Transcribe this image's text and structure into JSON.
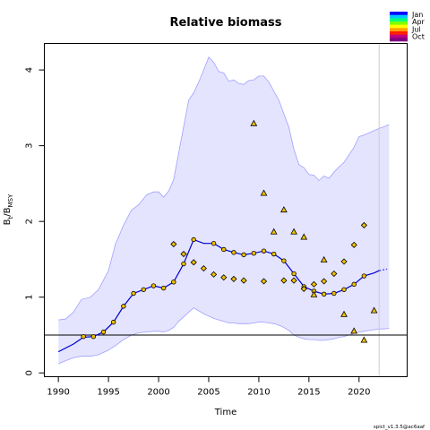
{
  "chart_data": {
    "type": "line",
    "title": "Relative biomass",
    "xlabel": "Time",
    "ylabel": "Bt/BMSY",
    "ylabel_main": "B",
    "ylabel_sub1": "t",
    "ylabel_sep": "/B",
    "ylabel_sub2": "MSY",
    "footnote": "spict_v1.3.5@ac6aaf",
    "xlim": [
      1988.6,
      2024.8
    ],
    "ylim": [
      -0.05,
      4.35
    ],
    "x_ticks": [
      1990,
      1995,
      2000,
      2005,
      2010,
      2015,
      2020
    ],
    "y_ticks": [
      0,
      1,
      2,
      3,
      4
    ],
    "reference_line_y": 0.5,
    "forecast_start_x": 2022,
    "grid": false,
    "legend": {
      "position": "top-right",
      "labels": [
        "Jan",
        "Apr",
        "Jul",
        "Oct"
      ],
      "colors": [
        "#0000ff",
        "#00c8ff",
        "#00ff80",
        "#80ff00",
        "#ffff00",
        "#ffa000",
        "#ff2000",
        "#c00080",
        "#800080"
      ]
    },
    "colors": {
      "ci_fill": "#e4e4ff",
      "ci_line": "#a0a0ff",
      "estimate_line": "#0000cc",
      "forecast_line": "#2828ff",
      "marker_fill": "#f0c000",
      "reference_line": "#000000",
      "forecast_vline": "#cccccc"
    },
    "ci_upper": {
      "x": [
        1990,
        1990.7,
        1991.5,
        1992.3,
        1993.2,
        1994,
        1995,
        1995.7,
        1996.5,
        1997.3,
        1998,
        1998.8,
        1999.5,
        2000,
        2000.5,
        2001,
        2001.5,
        2002,
        2003,
        2003.5,
        2004,
        2004.5,
        2005,
        2005.5,
        2006,
        2006.5,
        2007,
        2007.5,
        2008,
        2008.5,
        2009,
        2009.5,
        2010,
        2010.5,
        2011,
        2011.5,
        2012,
        2012.5,
        2013,
        2013.5,
        2014,
        2014.5,
        2015,
        2015.5,
        2016,
        2016.5,
        2017,
        2017.5,
        2018,
        2018.5,
        2019,
        2019.5,
        2020,
        2020.5,
        2021,
        2021.5,
        2022,
        2022.5,
        2023
      ],
      "values": [
        0.7,
        0.71,
        0.8,
        0.97,
        1.0,
        1.1,
        1.35,
        1.7,
        1.95,
        2.15,
        2.22,
        2.35,
        2.39,
        2.39,
        2.32,
        2.4,
        2.55,
        2.9,
        3.6,
        3.7,
        3.84,
        4.0,
        4.17,
        4.1,
        3.98,
        3.96,
        3.85,
        3.87,
        3.82,
        3.81,
        3.86,
        3.87,
        3.92,
        3.92,
        3.84,
        3.72,
        3.6,
        3.42,
        3.24,
        2.95,
        2.75,
        2.71,
        2.62,
        2.61,
        2.54,
        2.6,
        2.57,
        2.65,
        2.72,
        2.78,
        2.88,
        2.98,
        3.12,
        3.14,
        3.17,
        3.2,
        3.23,
        3.25,
        3.28
      ]
    },
    "ci_lower": {
      "x": [
        1990,
        1990.7,
        1991.5,
        1992.3,
        1993.2,
        1994,
        1995,
        1995.7,
        1996.5,
        1997.3,
        1998,
        1998.8,
        1999.5,
        2000,
        2000.5,
        2001,
        2001.5,
        2002,
        2003,
        2003.5,
        2004,
        2004.5,
        2005,
        2005.5,
        2006,
        2006.5,
        2007,
        2007.5,
        2008,
        2008.5,
        2009,
        2009.5,
        2010,
        2010.5,
        2011,
        2011.5,
        2012,
        2012.5,
        2013,
        2013.5,
        2014,
        2014.5,
        2015,
        2015.5,
        2016,
        2016.5,
        2017,
        2017.5,
        2018,
        2018.5,
        2019,
        2019.5,
        2020,
        2020.5,
        2021,
        2021.5,
        2022,
        2022.5,
        2023
      ],
      "values": [
        0.12,
        0.16,
        0.2,
        0.22,
        0.22,
        0.24,
        0.3,
        0.36,
        0.44,
        0.5,
        0.53,
        0.54,
        0.55,
        0.55,
        0.54,
        0.56,
        0.6,
        0.68,
        0.8,
        0.86,
        0.82,
        0.78,
        0.75,
        0.72,
        0.7,
        0.68,
        0.66,
        0.66,
        0.65,
        0.65,
        0.65,
        0.66,
        0.67,
        0.67,
        0.66,
        0.65,
        0.63,
        0.6,
        0.56,
        0.5,
        0.47,
        0.45,
        0.44,
        0.44,
        0.43,
        0.43,
        0.44,
        0.45,
        0.47,
        0.48,
        0.5,
        0.52,
        0.54,
        0.55,
        0.56,
        0.57,
        0.58,
        0.58,
        0.59
      ]
    },
    "series": [
      {
        "kind": "estimate",
        "x": [
          1990,
          1991.5,
          1992.5,
          1993.5,
          1994.5,
          1995.5,
          1996.5,
          1997.5,
          1998.5,
          1999.5,
          2000.5,
          2001.5,
          2002.5,
          2003.5,
          2004.5,
          2005.5,
          2006.5,
          2007.5,
          2008.5,
          2009.5,
          2010.5,
          2011.5,
          2012.5,
          2013.5,
          2014.5,
          2015.5,
          2016.5,
          2017.5,
          2018.5,
          2019.5,
          2020.5,
          2021.5,
          2022
        ],
        "values": [
          0.28,
          0.38,
          0.47,
          0.48,
          0.54,
          0.67,
          0.88,
          1.05,
          1.1,
          1.15,
          1.12,
          1.2,
          1.44,
          1.76,
          1.71,
          1.71,
          1.63,
          1.59,
          1.56,
          1.58,
          1.61,
          1.57,
          1.48,
          1.31,
          1.14,
          1.08,
          1.04,
          1.05,
          1.1,
          1.17,
          1.28,
          1.32,
          1.35
        ]
      },
      {
        "kind": "forecast",
        "x": [
          2022,
          2022.4,
          2022.8
        ],
        "values": [
          1.35,
          1.36,
          1.37
        ]
      }
    ],
    "index_circles": {
      "x": [
        1992.5,
        1993.5,
        1994.5,
        1995.5,
        1996.5,
        1997.5,
        1998.5,
        1999.5,
        2000.5,
        2001.5,
        2002.5,
        2003.5,
        2005.5,
        2006.5,
        2007.5,
        2008.5,
        2009.5,
        2010.5,
        2011.5,
        2012.5,
        2013.5,
        2014.5,
        2015.5,
        2016.5,
        2017.5,
        2018.5,
        2019.5,
        2020.5
      ],
      "values": [
        0.48,
        0.48,
        0.54,
        0.67,
        0.88,
        1.05,
        1.1,
        1.15,
        1.12,
        1.2,
        1.44,
        1.76,
        1.71,
        1.63,
        1.59,
        1.56,
        1.58,
        1.61,
        1.57,
        1.48,
        1.31,
        1.14,
        1.08,
        1.04,
        1.05,
        1.1,
        1.17,
        1.28
      ]
    },
    "index_diamonds": {
      "x": [
        2001.5,
        2002.5,
        2003.5,
        2004.5,
        2005.5,
        2006.5,
        2007.5,
        2008.5,
        2010.5,
        2012.5,
        2013.5,
        2014.5,
        2015.5,
        2016.5,
        2017.5,
        2018.5,
        2019.5,
        2020.5
      ],
      "values": [
        1.7,
        1.57,
        1.46,
        1.38,
        1.3,
        1.26,
        1.24,
        1.22,
        1.21,
        1.22,
        1.22,
        1.11,
        1.17,
        1.21,
        1.31,
        1.47,
        1.69,
        1.95
      ]
    },
    "index_triangles": {
      "x": [
        2009.5,
        2010.5,
        2011.5,
        2012.5,
        2013.5,
        2014.5,
        2015.5,
        2016.5,
        2018.5,
        2019.5,
        2020.5,
        2021.5
      ],
      "values": [
        3.29,
        2.37,
        1.86,
        2.15,
        1.86,
        1.79,
        1.03,
        1.49,
        0.77,
        0.55,
        0.43,
        0.82
      ]
    }
  }
}
